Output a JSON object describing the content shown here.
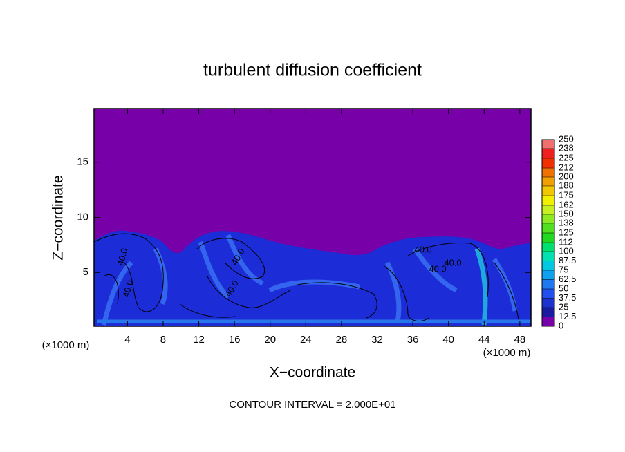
{
  "chart_data": {
    "type": "contour",
    "title": "turbulent diffusion coefficient",
    "x_label": "X−coordinate",
    "y_label": "Z−coordinate",
    "x_unit_left": "(×1000 m)",
    "x_unit_right": "(×1000 m)",
    "footer": "CONTOUR INTERVAL = 2.000E+01",
    "xlim": [
      0.25,
      49.25
    ],
    "xticks": [
      4,
      8,
      12,
      16,
      20,
      24,
      28,
      32,
      36,
      40,
      44,
      48
    ],
    "ylim": [
      0.125,
      19.875
    ],
    "yticks": [
      5,
      10,
      15
    ],
    "contour_labels": [
      "40.0",
      "40.0",
      "40.0",
      "40.0",
      "40.0",
      "40.0",
      "40.0"
    ],
    "colorbar_ticks": [
      0,
      12.5,
      25,
      37.5,
      50,
      62.5,
      75,
      87.5,
      100,
      112,
      125,
      138,
      150,
      162,
      175,
      188,
      200,
      212,
      225,
      238,
      250
    ],
    "colorbar_colors": [
      "#7800a8",
      "#1a1aa0",
      "#1e32d0",
      "#2050f0",
      "#1e78f0",
      "#10a0f0",
      "#00c8e0",
      "#00e0b0",
      "#00e070",
      "#20d820",
      "#50e020",
      "#90e820",
      "#c8f020",
      "#f0f000",
      "#f0c800",
      "#f0a000",
      "#f07000",
      "#f03000",
      "#f02020",
      "#f07070"
    ]
  }
}
